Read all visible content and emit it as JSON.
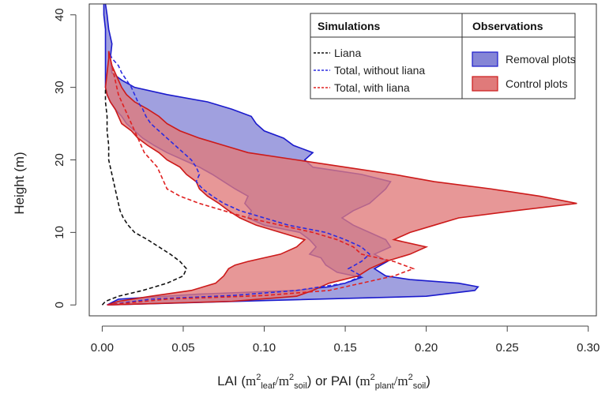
{
  "chart_data": {
    "type": "line",
    "xlabel": {
      "prefix": "LAI (",
      "lai_m": "m",
      "lai_sup1": "2",
      "lai_sub1": "leaf",
      "slash1": "/m",
      "lai_sup2": "2",
      "lai_sub2": "soil",
      "middle": ") or PAI (",
      "pai_m": "m",
      "pai_sup1": "2",
      "pai_sub1": "plant",
      "slash2": "/m",
      "pai_sup2": "2",
      "pai_sub2": "soil",
      "suffix": ")"
    },
    "ylabel": "Height (m)",
    "xlim": [
      -0.008,
      0.305
    ],
    "ylim": [
      -1.5,
      41.5
    ],
    "x_ticks": [
      0.0,
      0.05,
      0.1,
      0.15,
      0.2,
      0.25,
      0.3
    ],
    "x_tick_labels": [
      "0.00",
      "0.05",
      "0.10",
      "0.15",
      "0.20",
      "0.25",
      "0.30"
    ],
    "y_ticks": [
      0,
      10,
      20,
      30,
      40
    ],
    "y_tick_labels": [
      "0",
      "10",
      "20",
      "30",
      "40"
    ],
    "legend": {
      "placement": "top-right",
      "simulations_title": "Simulations",
      "observations_title": "Observations",
      "simulation_items": [
        {
          "label": "Liana",
          "color": "#111111"
        },
        {
          "label": "Total, without liana",
          "color": "#2b2be0"
        },
        {
          "label": "Total, with liana",
          "color": "#e02020"
        }
      ],
      "observation_items": [
        {
          "label": "Removal plots",
          "fill": "#8585d6",
          "stroke": "#1a1acc"
        },
        {
          "label": "Control plots",
          "fill": "#e07a7a",
          "stroke": "#cc1a1a"
        }
      ]
    },
    "series": [
      {
        "kind": "band",
        "name": "Removal plots",
        "fill": "#8585d6",
        "stroke": "#1a1acc",
        "lower": [
          [
            0.003,
            0
          ],
          [
            0.01,
            0.8
          ],
          [
            0.06,
            1.5
          ],
          [
            0.12,
            2
          ],
          [
            0.14,
            2.5
          ],
          [
            0.15,
            3
          ],
          [
            0.16,
            3.8
          ],
          [
            0.145,
            4.5
          ],
          [
            0.138,
            5.5
          ],
          [
            0.135,
            6.5
          ],
          [
            0.128,
            7
          ],
          [
            0.132,
            8
          ],
          [
            0.128,
            9
          ],
          [
            0.122,
            10
          ],
          [
            0.1,
            11
          ],
          [
            0.09,
            12
          ],
          [
            0.092,
            13
          ],
          [
            0.088,
            14
          ],
          [
            0.09,
            15
          ],
          [
            0.082,
            16
          ],
          [
            0.075,
            17
          ],
          [
            0.068,
            18
          ],
          [
            0.06,
            19
          ],
          [
            0.05,
            20
          ],
          [
            0.04,
            21
          ],
          [
            0.032,
            22
          ],
          [
            0.025,
            23
          ],
          [
            0.02,
            24
          ],
          [
            0.015,
            25
          ],
          [
            0.012,
            26
          ],
          [
            0.008,
            27
          ],
          [
            0.005,
            28
          ],
          [
            0.003,
            29
          ],
          [
            0.002,
            30
          ],
          [
            0.002,
            32
          ],
          [
            0.002,
            34
          ],
          [
            0.002,
            36
          ],
          [
            0.002,
            38
          ],
          [
            0.001,
            40
          ],
          [
            0.001,
            41.5
          ]
        ],
        "upper": [
          [
            0.003,
            0
          ],
          [
            0.1,
            0.6
          ],
          [
            0.2,
            1.2
          ],
          [
            0.23,
            2
          ],
          [
            0.232,
            2.5
          ],
          [
            0.22,
            3
          ],
          [
            0.19,
            3.5
          ],
          [
            0.175,
            4
          ],
          [
            0.168,
            5
          ],
          [
            0.176,
            6
          ],
          [
            0.168,
            7
          ],
          [
            0.178,
            8
          ],
          [
            0.175,
            9
          ],
          [
            0.165,
            10
          ],
          [
            0.155,
            11
          ],
          [
            0.148,
            12
          ],
          [
            0.155,
            13
          ],
          [
            0.165,
            14
          ],
          [
            0.17,
            15
          ],
          [
            0.175,
            16
          ],
          [
            0.178,
            17
          ],
          [
            0.16,
            18
          ],
          [
            0.13,
            19
          ],
          [
            0.125,
            20
          ],
          [
            0.13,
            21
          ],
          [
            0.118,
            22
          ],
          [
            0.112,
            23
          ],
          [
            0.1,
            24
          ],
          [
            0.095,
            25
          ],
          [
            0.092,
            26
          ],
          [
            0.08,
            27
          ],
          [
            0.065,
            28
          ],
          [
            0.04,
            29
          ],
          [
            0.02,
            30
          ],
          [
            0.012,
            31
          ],
          [
            0.006,
            32
          ],
          [
            0.005,
            34
          ],
          [
            0.006,
            36
          ],
          [
            0.004,
            38
          ],
          [
            0.003,
            40
          ],
          [
            0.002,
            41.5
          ]
        ]
      },
      {
        "kind": "band",
        "name": "Control plots",
        "fill": "#e07a7a",
        "stroke": "#cc1a1a",
        "lower": [
          [
            0.003,
            0
          ],
          [
            0.01,
            0.5
          ],
          [
            0.03,
            1.2
          ],
          [
            0.055,
            2
          ],
          [
            0.07,
            3
          ],
          [
            0.075,
            4
          ],
          [
            0.078,
            5
          ],
          [
            0.082,
            5.5
          ],
          [
            0.09,
            6
          ],
          [
            0.1,
            6.5
          ],
          [
            0.11,
            7
          ],
          [
            0.12,
            8
          ],
          [
            0.125,
            9
          ],
          [
            0.11,
            10
          ],
          [
            0.095,
            11
          ],
          [
            0.085,
            12
          ],
          [
            0.078,
            13
          ],
          [
            0.072,
            14
          ],
          [
            0.065,
            15
          ],
          [
            0.06,
            16
          ],
          [
            0.058,
            17
          ],
          [
            0.052,
            18
          ],
          [
            0.048,
            19
          ],
          [
            0.04,
            20
          ],
          [
            0.035,
            21
          ],
          [
            0.028,
            22
          ],
          [
            0.022,
            23
          ],
          [
            0.018,
            24
          ],
          [
            0.012,
            25
          ],
          [
            0.01,
            26
          ],
          [
            0.008,
            27
          ],
          [
            0.005,
            28
          ],
          [
            0.003,
            29
          ],
          [
            0.002,
            30
          ],
          [
            0.003,
            32
          ],
          [
            0.004,
            34
          ],
          [
            0.004,
            35
          ]
        ],
        "upper": [
          [
            0.003,
            0
          ],
          [
            0.08,
            0.5
          ],
          [
            0.12,
            1.2
          ],
          [
            0.13,
            2
          ],
          [
            0.14,
            3
          ],
          [
            0.158,
            4
          ],
          [
            0.165,
            5
          ],
          [
            0.175,
            6
          ],
          [
            0.19,
            7
          ],
          [
            0.2,
            8
          ],
          [
            0.18,
            9
          ],
          [
            0.19,
            10
          ],
          [
            0.205,
            11
          ],
          [
            0.22,
            12
          ],
          [
            0.255,
            13
          ],
          [
            0.293,
            14
          ],
          [
            0.27,
            15
          ],
          [
            0.24,
            16
          ],
          [
            0.205,
            17
          ],
          [
            0.18,
            18
          ],
          [
            0.15,
            19
          ],
          [
            0.12,
            20
          ],
          [
            0.09,
            21
          ],
          [
            0.075,
            22
          ],
          [
            0.06,
            23
          ],
          [
            0.048,
            24
          ],
          [
            0.04,
            25
          ],
          [
            0.035,
            26
          ],
          [
            0.028,
            27
          ],
          [
            0.02,
            28
          ],
          [
            0.015,
            29
          ],
          [
            0.012,
            30
          ],
          [
            0.01,
            31
          ],
          [
            0.008,
            32
          ],
          [
            0.006,
            33
          ],
          [
            0.005,
            34
          ],
          [
            0.004,
            35
          ]
        ]
      },
      {
        "kind": "line",
        "name": "Liana",
        "color": "#111111",
        "dash": true,
        "points": [
          [
            0.0,
            0
          ],
          [
            0.002,
            0.5
          ],
          [
            0.01,
            1.2
          ],
          [
            0.025,
            2
          ],
          [
            0.04,
            3
          ],
          [
            0.05,
            4
          ],
          [
            0.052,
            5
          ],
          [
            0.048,
            6
          ],
          [
            0.042,
            7
          ],
          [
            0.035,
            8
          ],
          [
            0.028,
            9
          ],
          [
            0.02,
            10
          ],
          [
            0.016,
            11
          ],
          [
            0.013,
            12
          ],
          [
            0.011,
            13
          ],
          [
            0.01,
            14
          ],
          [
            0.009,
            15
          ],
          [
            0.008,
            16
          ],
          [
            0.007,
            17
          ],
          [
            0.006,
            18
          ],
          [
            0.005,
            19
          ],
          [
            0.004,
            20
          ],
          [
            0.004,
            22
          ],
          [
            0.003,
            24
          ],
          [
            0.003,
            26
          ],
          [
            0.002,
            28
          ],
          [
            0.002,
            30
          ]
        ]
      },
      {
        "kind": "line",
        "name": "Total, without liana",
        "color": "#2b2be0",
        "dash": true,
        "points": [
          [
            0.003,
            0
          ],
          [
            0.03,
            0.8
          ],
          [
            0.08,
            1.3
          ],
          [
            0.12,
            2
          ],
          [
            0.15,
            3
          ],
          [
            0.16,
            4
          ],
          [
            0.152,
            5
          ],
          [
            0.16,
            6
          ],
          [
            0.165,
            7
          ],
          [
            0.16,
            8
          ],
          [
            0.15,
            9
          ],
          [
            0.138,
            10
          ],
          [
            0.115,
            11
          ],
          [
            0.1,
            12
          ],
          [
            0.085,
            13
          ],
          [
            0.075,
            14
          ],
          [
            0.068,
            15
          ],
          [
            0.062,
            16
          ],
          [
            0.058,
            17
          ],
          [
            0.06,
            18
          ],
          [
            0.058,
            19
          ],
          [
            0.055,
            20
          ],
          [
            0.05,
            21
          ],
          [
            0.045,
            22
          ],
          [
            0.04,
            23
          ],
          [
            0.035,
            24
          ],
          [
            0.03,
            25
          ],
          [
            0.027,
            26
          ],
          [
            0.025,
            27
          ],
          [
            0.022,
            28
          ],
          [
            0.02,
            29
          ],
          [
            0.018,
            30
          ],
          [
            0.015,
            31
          ],
          [
            0.012,
            32
          ],
          [
            0.01,
            33
          ],
          [
            0.006,
            34
          ],
          [
            0.004,
            35
          ]
        ]
      },
      {
        "kind": "line",
        "name": "Total, with liana",
        "color": "#e02020",
        "dash": true,
        "points": [
          [
            0.003,
            0
          ],
          [
            0.04,
            0.8
          ],
          [
            0.1,
            1.3
          ],
          [
            0.14,
            2
          ],
          [
            0.16,
            3
          ],
          [
            0.18,
            4
          ],
          [
            0.192,
            5
          ],
          [
            0.18,
            6
          ],
          [
            0.16,
            7
          ],
          [
            0.155,
            8
          ],
          [
            0.145,
            9
          ],
          [
            0.13,
            10
          ],
          [
            0.11,
            11
          ],
          [
            0.09,
            12
          ],
          [
            0.075,
            13
          ],
          [
            0.06,
            14
          ],
          [
            0.048,
            15
          ],
          [
            0.04,
            16
          ],
          [
            0.038,
            17
          ],
          [
            0.036,
            18
          ],
          [
            0.034,
            19
          ],
          [
            0.03,
            20
          ],
          [
            0.026,
            21
          ],
          [
            0.024,
            22
          ],
          [
            0.022,
            23
          ],
          [
            0.02,
            24
          ],
          [
            0.018,
            25
          ],
          [
            0.016,
            26
          ],
          [
            0.014,
            27
          ],
          [
            0.012,
            28
          ],
          [
            0.01,
            29
          ],
          [
            0.009,
            30
          ],
          [
            0.008,
            31
          ],
          [
            0.007,
            32
          ],
          [
            0.006,
            33
          ],
          [
            0.005,
            34
          ],
          [
            0.004,
            35
          ]
        ]
      }
    ]
  }
}
